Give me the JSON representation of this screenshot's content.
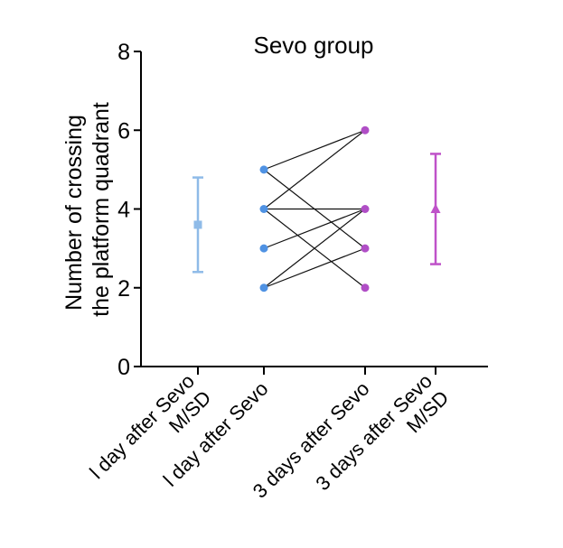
{
  "chart_data": {
    "type": "scatter",
    "title": "Sevo group",
    "ylabel_line1": "Number of crossing",
    "ylabel_line2": "the platform quadrant",
    "xlabel": "",
    "ylim": [
      0,
      8
    ],
    "yticks": [
      0,
      2,
      4,
      6,
      8
    ],
    "categories": [
      "l day after Sevo M/SD",
      "l day after Sevo",
      "3 days after Sevo",
      "3 days after Sevo M/SD"
    ],
    "summary": [
      {
        "category": "l day after Sevo M/SD",
        "mean": 3.6,
        "sd_low": 2.4,
        "sd_high": 4.8,
        "marker": "square",
        "color": "#8fbbe8"
      },
      {
        "category": "3 days after Sevo M/SD",
        "mean": 4.0,
        "sd_low": 2.6,
        "sd_high": 5.4,
        "marker": "triangle",
        "color": "#bf52c9"
      }
    ],
    "paired_points": {
      "from_category": "l day after Sevo",
      "to_category": "3 days after Sevo",
      "from_color": "#4f92e3",
      "to_color": "#b04ec6",
      "pairs": [
        [
          5,
          3
        ],
        [
          5,
          6
        ],
        [
          4,
          6
        ],
        [
          4,
          4
        ],
        [
          4,
          2
        ],
        [
          3,
          4
        ],
        [
          2,
          4
        ],
        [
          2,
          3
        ]
      ]
    },
    "grid": false,
    "legend": "none"
  }
}
